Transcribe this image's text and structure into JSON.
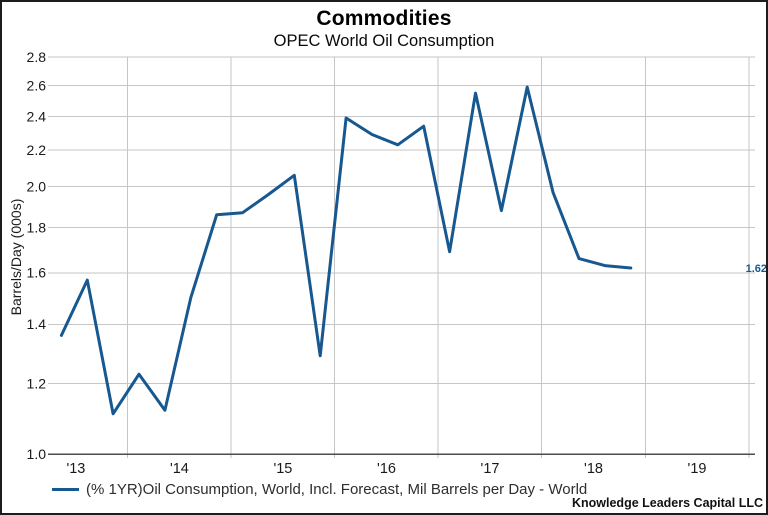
{
  "header": {
    "title": "Commodities",
    "subtitle": "OPEC World Oil Consumption"
  },
  "chart_data": {
    "type": "line",
    "title": "Commodities",
    "subtitle": "OPEC World Oil Consumption",
    "xlabel": "",
    "ylabel": "Barrels/Day (000s)",
    "y_scale": "log",
    "grid": true,
    "legend_position": "bottom",
    "x_domain": [
      2013.25,
      2020.06
    ],
    "y_domain": [
      1.0,
      2.8
    ],
    "y_ticks": [
      2.8,
      2.6,
      2.4,
      2.2,
      2.0,
      1.8,
      1.6,
      1.4,
      1.2,
      1.0
    ],
    "y_tick_labels": [
      "2.8",
      "2.6",
      "2.4",
      "2.2",
      "2.0",
      "1.8",
      "1.6",
      "1.4",
      "1.2",
      "1.0"
    ],
    "x_tick_labels": [
      "'13",
      "'14",
      "'15",
      "'16",
      "'17",
      "'18",
      "'19"
    ],
    "x_tick_positions": [
      2013.5,
      2014.5,
      2015.5,
      2016.5,
      2017.5,
      2018.5,
      2019.5
    ],
    "x_gridlines": [
      2014,
      2015,
      2016,
      2017,
      2018,
      2019,
      2020
    ],
    "series": [
      {
        "name": "(% 1YR)Oil Consumption, World, Incl. Forecast, Mil Barrels per Day - World",
        "color": "#16588F",
        "x": [
          2013.36,
          2013.61,
          2013.86,
          2014.11,
          2014.36,
          2014.61,
          2014.86,
          2015.11,
          2015.36,
          2015.61,
          2015.86,
          2016.11,
          2016.36,
          2016.61,
          2016.86,
          2017.11,
          2017.36,
          2017.61,
          2017.86,
          2018.11,
          2018.36,
          2018.61,
          2018.86
        ],
        "values": [
          1.36,
          1.57,
          1.11,
          1.23,
          1.12,
          1.5,
          1.86,
          1.87,
          1.96,
          2.06,
          1.29,
          2.39,
          2.29,
          2.23,
          2.34,
          1.69,
          2.55,
          1.88,
          2.59,
          1.97,
          1.66,
          1.63,
          1.62
        ]
      }
    ],
    "end_label": "1.62"
  },
  "legend": {
    "label": "(% 1YR)Oil Consumption, World, Incl. Forecast, Mil Barrels per Day - World",
    "swatch_color": "#16588F"
  },
  "attribution": "Knowledge Leaders Capital LLC",
  "colors": {
    "line": "#16588F",
    "grid": "#c6c6c6",
    "axis": "#4d4d4d",
    "tick_text": "#1a1a1a",
    "end_label": "#16588F"
  }
}
